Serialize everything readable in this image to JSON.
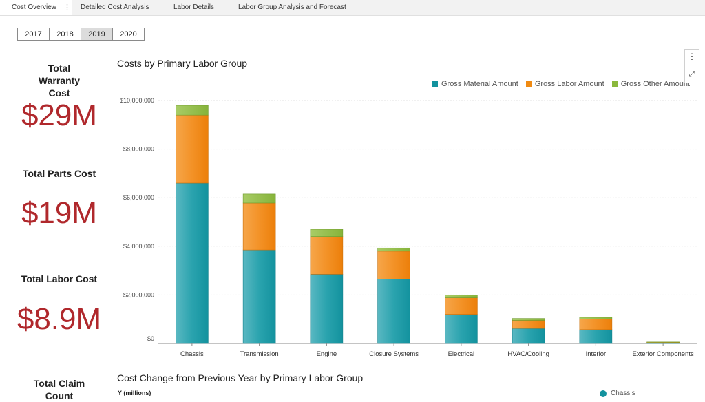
{
  "tabs": [
    {
      "label": "Cost Overview",
      "active": true
    },
    {
      "label": "Detailed Cost Analysis",
      "active": false
    },
    {
      "label": "Labor Details",
      "active": false
    },
    {
      "label": "Labor Group Analysis and Forecast",
      "active": false
    }
  ],
  "tab_menu_glyph": "⋮",
  "years": {
    "options": [
      "2017",
      "2018",
      "2019",
      "2020"
    ],
    "selected": "2019"
  },
  "kpis": [
    {
      "title": "Total Warranty Cost",
      "value": "$29M"
    },
    {
      "title": "Total Parts Cost",
      "value": "$19M"
    },
    {
      "title": "Total Labor Cost",
      "value": "$8.9M"
    },
    {
      "title": "Total Claim Count",
      "value": ""
    }
  ],
  "colors": {
    "material": "#13929e",
    "labor": "#f08a12",
    "other": "#8bb83c",
    "kpi_value": "#b0282c"
  },
  "chart_menu": {
    "dots_glyph": "⋮",
    "expand_glyph": "⤢"
  },
  "chart_data": {
    "type": "bar",
    "stacked": true,
    "title": "Costs by Primary Labor Group",
    "categories": [
      "Chassis",
      "Transmission",
      "Engine",
      "Closure Systems",
      "Electrical",
      "HVAC/Cooling",
      "Interior",
      "Exterior Components"
    ],
    "series": [
      {
        "name": "Gross Material Amount",
        "values": [
          6600000,
          3850000,
          2850000,
          2650000,
          1200000,
          620000,
          570000,
          20000
        ]
      },
      {
        "name": "Gross Labor Amount",
        "values": [
          2800000,
          1930000,
          1550000,
          1150000,
          680000,
          330000,
          430000,
          30000
        ]
      },
      {
        "name": "Gross Other Amount",
        "values": [
          400000,
          370000,
          300000,
          130000,
          120000,
          80000,
          80000,
          10000
        ]
      }
    ],
    "yticks": [
      {
        "value": 0,
        "label": "$0"
      },
      {
        "value": 2000000,
        "label": "$2,000,000"
      },
      {
        "value": 4000000,
        "label": "$4,000,000"
      },
      {
        "value": 6000000,
        "label": "$6,000,000"
      },
      {
        "value": 8000000,
        "label": "$8,000,000"
      },
      {
        "value": 10000000,
        "label": "$10,000,000"
      }
    ],
    "ylim": [
      0,
      10000000
    ],
    "grid": true,
    "legend_position": "top-right"
  },
  "chart2": {
    "title": "Cost Change from Previous Year by Primary Labor Group",
    "ylabel": "Y (millions)",
    "legend_first": "Chassis"
  }
}
